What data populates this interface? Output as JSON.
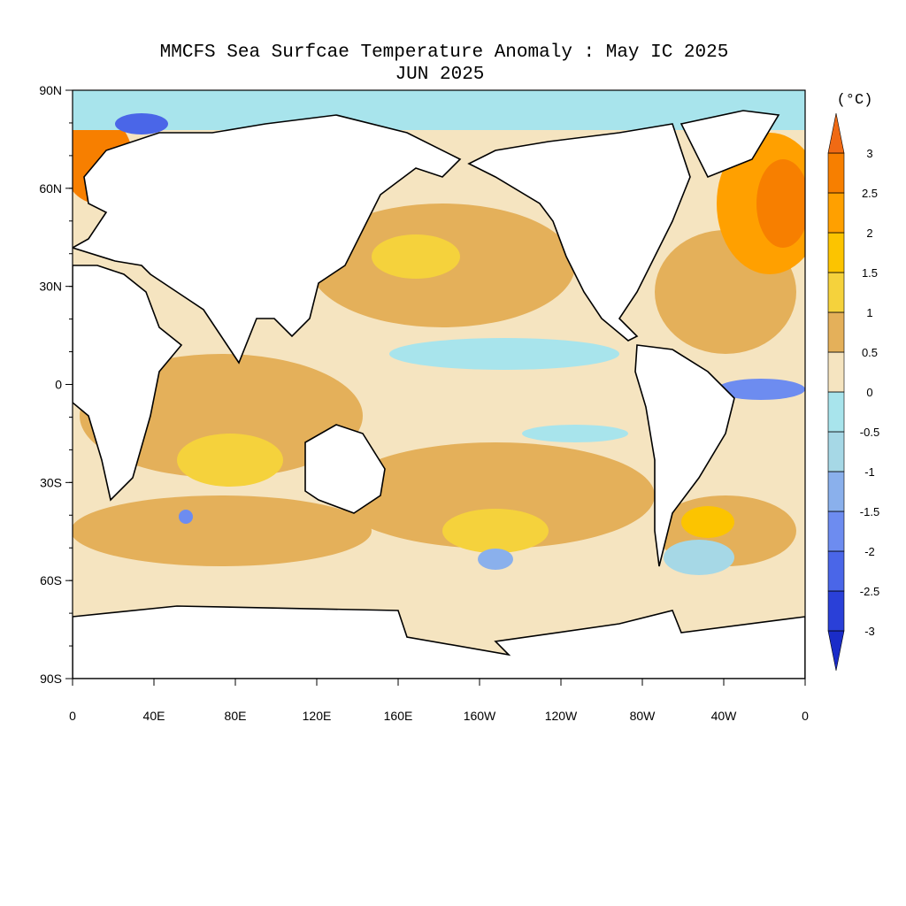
{
  "title": "MMCFS Sea Surfcae Temperature Anomaly : May IC 2025",
  "subtitle": "JUN 2025",
  "lat_labels": [
    "90N",
    "60N",
    "30N",
    "0",
    "30S",
    "60S",
    "90S"
  ],
  "lon_labels": [
    "0",
    "40E",
    "80E",
    "120E",
    "160E",
    "160W",
    "120W",
    "80W",
    "40W",
    "0"
  ],
  "colorbar": {
    "unit": "(°C)",
    "levels": [
      -3,
      -2.5,
      -2,
      -1.5,
      -1,
      -0.5,
      0,
      0.5,
      1,
      1.5,
      2,
      2.5,
      3
    ],
    "colors": [
      "#1a2cc8",
      "#2a40d8",
      "#4a66e8",
      "#6d8cf0",
      "#8ab0ec",
      "#a6d8e6",
      "#a8e4ec",
      "#f5e4c0",
      "#e4b05a",
      "#f5d23c",
      "#fcc400",
      "#ffa000",
      "#f77f00",
      "#f06a14"
    ]
  }
}
